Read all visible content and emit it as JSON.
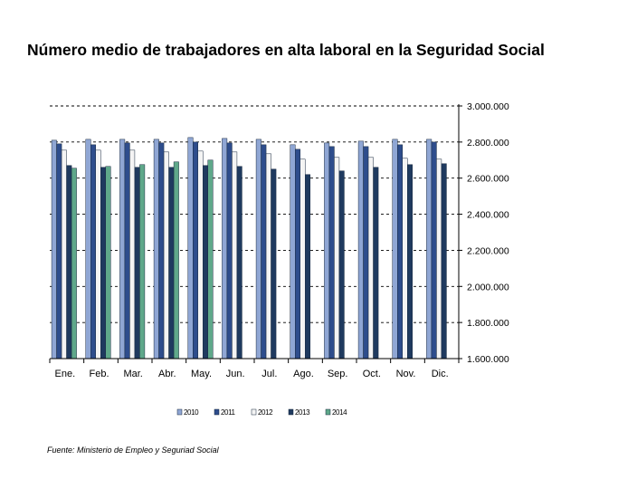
{
  "title": "Número medio de trabajadores en alta laboral en la Seguridad Social",
  "source": "Fuente: Ministerio de Empleo y Seguriad Social",
  "chart_data": {
    "type": "bar",
    "categories": [
      "Ene.",
      "Feb.",
      "Mar.",
      "Abr.",
      "May.",
      "Jun.",
      "Jul.",
      "Ago.",
      "Sep.",
      "Oct.",
      "Nov.",
      "Dic."
    ],
    "ylim": [
      1600000,
      3000000
    ],
    "yticks": [
      "1.600.000",
      "1.800.000",
      "2.000.000",
      "2.200.000",
      "2.400.000",
      "2.600.000",
      "2.800.000",
      "3.000.000"
    ],
    "ytick_values": [
      1600000,
      1800000,
      2000000,
      2200000,
      2400000,
      2600000,
      2800000,
      3000000
    ],
    "grid": "dashed",
    "y_axis_position": "right",
    "legend_position": "bottom",
    "series": [
      {
        "name": "2010",
        "color": "#8FA6D4",
        "values": [
          2810000,
          2815000,
          2815000,
          2815000,
          2825000,
          2820000,
          2815000,
          2785000,
          2795000,
          2805000,
          2815000,
          2815000
        ]
      },
      {
        "name": "2011",
        "color": "#2E4D8C",
        "values": [
          2790000,
          2785000,
          2795000,
          2795000,
          2800000,
          2795000,
          2785000,
          2760000,
          2775000,
          2775000,
          2785000,
          2800000
        ]
      },
      {
        "name": "2012",
        "color": "#F4F4F4",
        "values": [
          2755000,
          2755000,
          2755000,
          2745000,
          2750000,
          2745000,
          2735000,
          2705000,
          2715000,
          2715000,
          2710000,
          2705000
        ]
      },
      {
        "name": "2013",
        "color": "#1F3A5F",
        "values": [
          2670000,
          2660000,
          2660000,
          2660000,
          2670000,
          2665000,
          2650000,
          2620000,
          2640000,
          2660000,
          2675000,
          2680000
        ]
      },
      {
        "name": "2014",
        "color": "#5FA88A",
        "values": [
          2655000,
          2665000,
          2675000,
          2690000,
          2700000,
          null,
          null,
          null,
          null,
          null,
          null,
          null
        ]
      }
    ]
  }
}
